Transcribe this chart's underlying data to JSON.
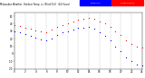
{
  "title": "Milwaukee Weather  Outdoor Temp  vs  Wind Chill  (24 Hours)",
  "background_color": "#ffffff",
  "temp_color": "#ff0000",
  "windchill_color": "#0000ff",
  "legend_temp_label": "Outdoor Temp",
  "legend_wc_label": "Wind Chill",
  "ylim": [
    -20,
    55
  ],
  "xlim": [
    0,
    24
  ],
  "hours": [
    0,
    1,
    2,
    3,
    4,
    5,
    6,
    7,
    8,
    9,
    10,
    11,
    12,
    13,
    14,
    15,
    16,
    17,
    18,
    19,
    20,
    21,
    22,
    23,
    24
  ],
  "temp": [
    38,
    37,
    35,
    33,
    31,
    30,
    29,
    32,
    36,
    38,
    40,
    43,
    45,
    47,
    48,
    46,
    43,
    40,
    36,
    30,
    25,
    18,
    13,
    10,
    8
  ],
  "windchill": [
    30,
    28,
    26,
    24,
    21,
    19,
    18,
    20,
    25,
    28,
    30,
    32,
    34,
    35,
    36,
    33,
    29,
    24,
    18,
    10,
    3,
    -5,
    -10,
    -14,
    -16
  ],
  "grid_color": "#aaaaaa",
  "tick_color": "#000000",
  "yticks": [
    -20,
    -10,
    0,
    10,
    20,
    30,
    40,
    50
  ],
  "xtick_step": 2
}
